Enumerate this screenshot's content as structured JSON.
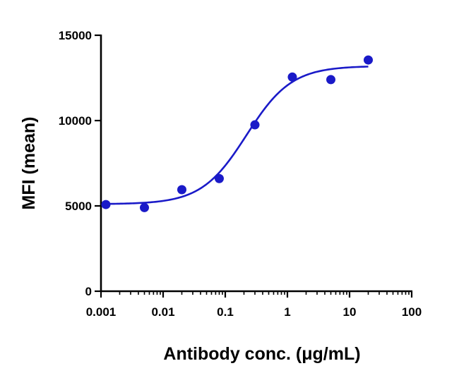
{
  "chart_data": {
    "type": "scatter",
    "title": "",
    "xlabel": "Antibody conc. (μg/mL)",
    "ylabel": "MFI (mean)",
    "x_scale": "log",
    "xlim": [
      0.001,
      100
    ],
    "ylim": [
      0,
      15000
    ],
    "x_tick_labels": [
      "0.001",
      "0.01",
      "0.1",
      "1",
      "10",
      "100"
    ],
    "y_tick_labels": [
      "0",
      "5000",
      "10000",
      "15000"
    ],
    "grid": false,
    "legend": "none",
    "color": "#1a1ac8",
    "series": [
      {
        "x": [
          0.0012,
          0.005,
          0.02,
          0.08,
          0.3,
          1.2,
          5,
          20
        ],
        "y": [
          5080,
          4900,
          5950,
          6600,
          9750,
          12550,
          12400,
          13550
        ]
      }
    ],
    "fit_curve": {
      "model": "four-parameter logistic",
      "bottom": 5100,
      "top": 13200,
      "ec50": 0.22,
      "hill_slope": 1.2
    }
  }
}
